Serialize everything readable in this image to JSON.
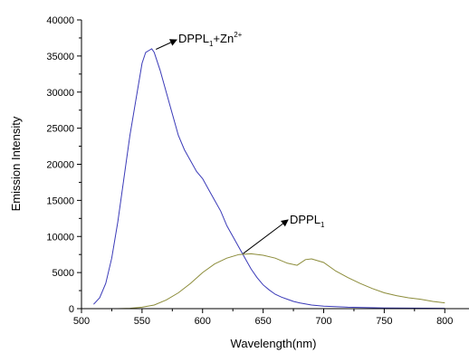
{
  "chart_data": {
    "type": "line",
    "title": "",
    "xlabel": "Wavelength(nm)",
    "ylabel": "Emission Intensity",
    "xlim": [
      500,
      820
    ],
    "ylim": [
      0,
      40000
    ],
    "x_ticks": [
      "500",
      "550",
      "600",
      "650",
      "700",
      "750",
      "800"
    ],
    "y_ticks": [
      "0",
      "5000",
      "10000",
      "15000",
      "20000",
      "25000",
      "30000",
      "35000",
      "40000"
    ],
    "grid": false,
    "legend": "none",
    "series": [
      {
        "name": "DPPL1+Zn2+",
        "color": "#3a3ab8",
        "points": [
          [
            510,
            600
          ],
          [
            515,
            1500
          ],
          [
            520,
            3500
          ],
          [
            525,
            7000
          ],
          [
            530,
            12000
          ],
          [
            535,
            18000
          ],
          [
            540,
            24000
          ],
          [
            545,
            29000
          ],
          [
            550,
            34000
          ],
          [
            553,
            35500
          ],
          [
            556,
            35800
          ],
          [
            558,
            36000
          ],
          [
            560,
            35500
          ],
          [
            565,
            33000
          ],
          [
            570,
            30000
          ],
          [
            575,
            27000
          ],
          [
            580,
            24000
          ],
          [
            585,
            22000
          ],
          [
            590,
            20500
          ],
          [
            595,
            19000
          ],
          [
            600,
            18000
          ],
          [
            605,
            16500
          ],
          [
            610,
            15000
          ],
          [
            615,
            13500
          ],
          [
            620,
            11500
          ],
          [
            625,
            10000
          ],
          [
            630,
            8500
          ],
          [
            635,
            7000
          ],
          [
            640,
            5500
          ],
          [
            645,
            4300
          ],
          [
            650,
            3300
          ],
          [
            655,
            2600
          ],
          [
            660,
            2000
          ],
          [
            665,
            1600
          ],
          [
            670,
            1300
          ],
          [
            675,
            1000
          ],
          [
            680,
            800
          ],
          [
            690,
            500
          ],
          [
            700,
            350
          ],
          [
            720,
            200
          ],
          [
            750,
            100
          ],
          [
            800,
            50
          ]
        ]
      },
      {
        "name": "DPPL1",
        "color": "#8c8c3a",
        "points": [
          [
            530,
            0
          ],
          [
            540,
            50
          ],
          [
            550,
            200
          ],
          [
            560,
            500
          ],
          [
            570,
            1200
          ],
          [
            580,
            2200
          ],
          [
            590,
            3500
          ],
          [
            600,
            5000
          ],
          [
            610,
            6200
          ],
          [
            620,
            7000
          ],
          [
            630,
            7500
          ],
          [
            640,
            7600
          ],
          [
            650,
            7400
          ],
          [
            660,
            7000
          ],
          [
            670,
            6300
          ],
          [
            678,
            6000
          ],
          [
            685,
            6800
          ],
          [
            690,
            6900
          ],
          [
            700,
            6400
          ],
          [
            710,
            5200
          ],
          [
            720,
            4300
          ],
          [
            730,
            3500
          ],
          [
            740,
            2800
          ],
          [
            750,
            2200
          ],
          [
            760,
            1800
          ],
          [
            770,
            1500
          ],
          [
            780,
            1300
          ],
          [
            790,
            1000
          ],
          [
            800,
            800
          ]
        ]
      }
    ],
    "annotations": [
      {
        "id": "zn",
        "main": "DPPL",
        "sub": "1",
        "after": "+Zn",
        "sup": "2+",
        "arrow_to": [
          560,
          35800
        ]
      },
      {
        "id": "dppl",
        "main": "DPPL",
        "sub": "1",
        "after": "",
        "sup": "",
        "arrow_to": [
          632,
          7500
        ]
      }
    ]
  }
}
